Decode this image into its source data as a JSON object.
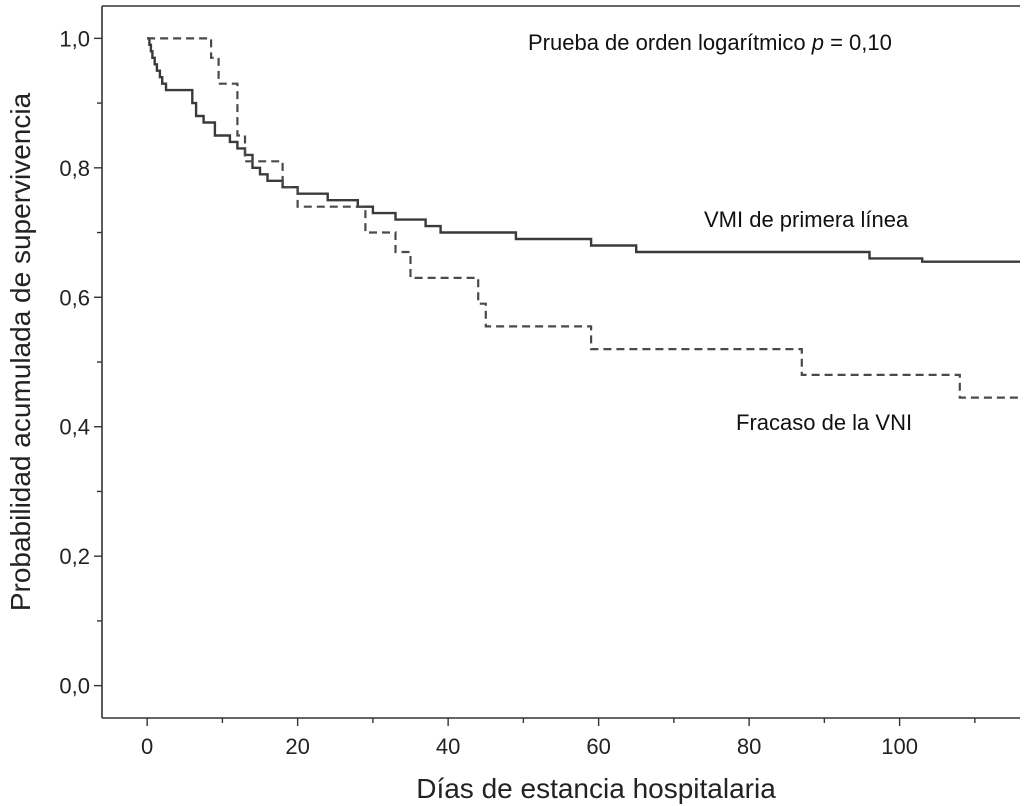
{
  "chart_data": {
    "type": "line",
    "xlabel": "Días de estancia hospitalaria",
    "ylabel": "Probabilidad acumulada de supervivencia",
    "xlim": [
      -6,
      116
    ],
    "ylim": [
      -0.05,
      1.05
    ],
    "xticks": [
      0,
      20,
      40,
      60,
      80,
      100
    ],
    "yticks": [
      0.0,
      0.2,
      0.4,
      0.6,
      0.8,
      1.0
    ],
    "xtick_labels": [
      "0",
      "20",
      "40",
      "60",
      "80",
      "100"
    ],
    "ytick_labels": [
      "0,0",
      "0,2",
      "0,4",
      "0,6",
      "0,8",
      "1,0"
    ],
    "grid": false,
    "annotation": {
      "prefix": "Prueba de orden logarítmico ",
      "italic": "p",
      "suffix": " = 0,10"
    },
    "series": [
      {
        "name": "VMI de primera línea",
        "style": "solid",
        "color": "#3a3a3a",
        "points": [
          [
            0,
            1.0
          ],
          [
            0.3,
            0.99
          ],
          [
            0.5,
            0.98
          ],
          [
            0.7,
            0.97
          ],
          [
            1,
            0.96
          ],
          [
            1.3,
            0.95
          ],
          [
            1.7,
            0.94
          ],
          [
            2,
            0.93
          ],
          [
            2.5,
            0.92
          ],
          [
            6,
            0.9
          ],
          [
            6.5,
            0.88
          ],
          [
            7.5,
            0.87
          ],
          [
            9,
            0.85
          ],
          [
            11,
            0.84
          ],
          [
            12,
            0.83
          ],
          [
            13,
            0.82
          ],
          [
            14,
            0.8
          ],
          [
            15,
            0.79
          ],
          [
            16,
            0.78
          ],
          [
            18,
            0.77
          ],
          [
            20,
            0.76
          ],
          [
            24,
            0.75
          ],
          [
            28,
            0.74
          ],
          [
            30,
            0.73
          ],
          [
            33,
            0.72
          ],
          [
            37,
            0.71
          ],
          [
            39,
            0.7
          ],
          [
            49,
            0.69
          ],
          [
            59,
            0.68
          ],
          [
            65,
            0.67
          ],
          [
            96,
            0.66
          ],
          [
            103,
            0.655
          ],
          [
            116,
            0.655
          ]
        ]
      },
      {
        "name": "Fracaso de la VNI",
        "style": "dashed",
        "color": "#4a4a4a",
        "points": [
          [
            0,
            1.0
          ],
          [
            8.5,
            0.97
          ],
          [
            9.5,
            0.93
          ],
          [
            12,
            0.85
          ],
          [
            13,
            0.81
          ],
          [
            18,
            0.77
          ],
          [
            20,
            0.74
          ],
          [
            29,
            0.7
          ],
          [
            33,
            0.67
          ],
          [
            35,
            0.63
          ],
          [
            44,
            0.59
          ],
          [
            45,
            0.555
          ],
          [
            59,
            0.52
          ],
          [
            87,
            0.48
          ],
          [
            108,
            0.445
          ],
          [
            116,
            0.445
          ]
        ]
      }
    ],
    "series_labels": [
      "VMI de primera línea",
      "Fracaso de la VNI"
    ]
  }
}
